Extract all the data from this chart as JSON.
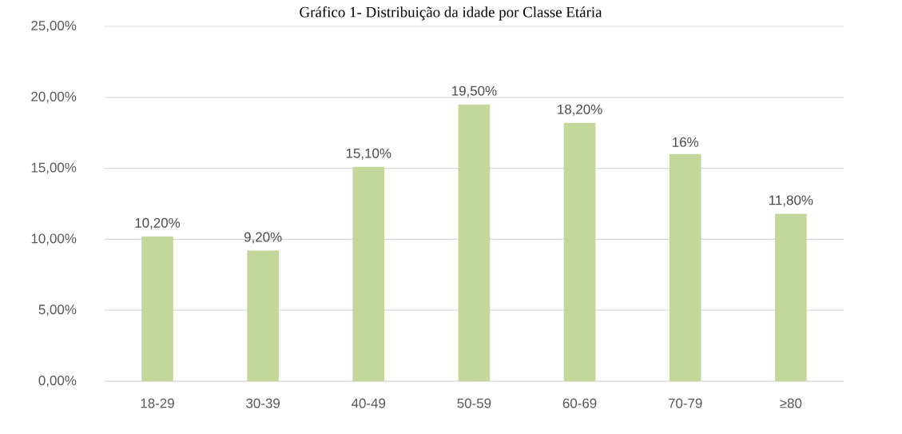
{
  "chart_data": {
    "type": "bar",
    "title": "Gráfico 1- Distribuição da idade por Classe Etária",
    "categories": [
      "18-29",
      "30-39",
      "40-49",
      "50-59",
      "60-69",
      "70-79",
      "≥80"
    ],
    "values": [
      10.2,
      9.2,
      15.1,
      19.5,
      18.2,
      16,
      11.8
    ],
    "value_labels": [
      "10,20%",
      "9,20%",
      "15,10%",
      "19,50%",
      "18,20%",
      "16%",
      "11,80%"
    ],
    "color": "#c4d79b",
    "ylim": [
      0,
      25
    ],
    "yticks": [
      {
        "value": 0,
        "label": "0,00%"
      },
      {
        "value": 5,
        "label": "5,00%"
      },
      {
        "value": 10,
        "label": "10,00%"
      },
      {
        "value": 15,
        "label": "15,00%"
      },
      {
        "value": 20,
        "label": "20,00%"
      },
      {
        "value": 25,
        "label": "25,00%"
      }
    ],
    "grid": "y"
  }
}
